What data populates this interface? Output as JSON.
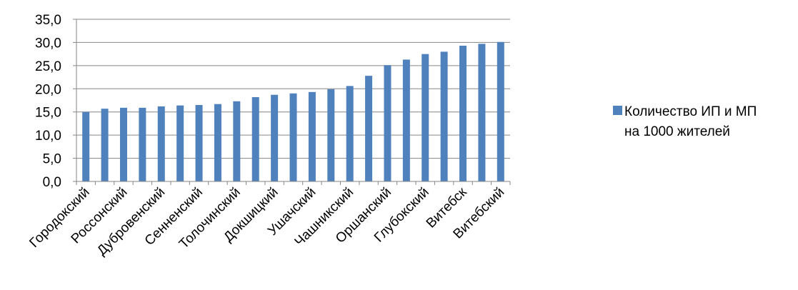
{
  "chart_data": {
    "type": "bar",
    "categories": [
      "Городокский",
      "",
      "Россонский",
      "",
      "Дубровенский",
      "",
      "Сенненский",
      "",
      "Толочинский",
      "",
      "Докшицкий",
      "",
      "Ушачский",
      "",
      "Чашникский",
      "",
      "Оршанский",
      "",
      "Глубокский",
      "",
      "Витебск",
      "",
      "Витебский"
    ],
    "series": [
      {
        "name": "Количество ИП и МП на 1000 жителей",
        "color": "#4f81bd",
        "values": [
          15.0,
          15.7,
          15.9,
          15.9,
          16.2,
          16.4,
          16.5,
          16.7,
          17.3,
          18.2,
          18.7,
          19.0,
          19.3,
          19.9,
          20.6,
          22.8,
          25.1,
          26.3,
          27.5,
          28.0,
          29.3,
          29.7,
          30.1
        ]
      }
    ],
    "yticks": [
      "0,0",
      "5,0",
      "10,0",
      "15,0",
      "20,0",
      "25,0",
      "30,0",
      "35,0"
    ],
    "ylim": [
      0,
      35
    ],
    "grid": true,
    "legend_position": "right"
  },
  "legend": {
    "line1": "Количество ИП и МП",
    "line2": "на 1000 жителей"
  }
}
